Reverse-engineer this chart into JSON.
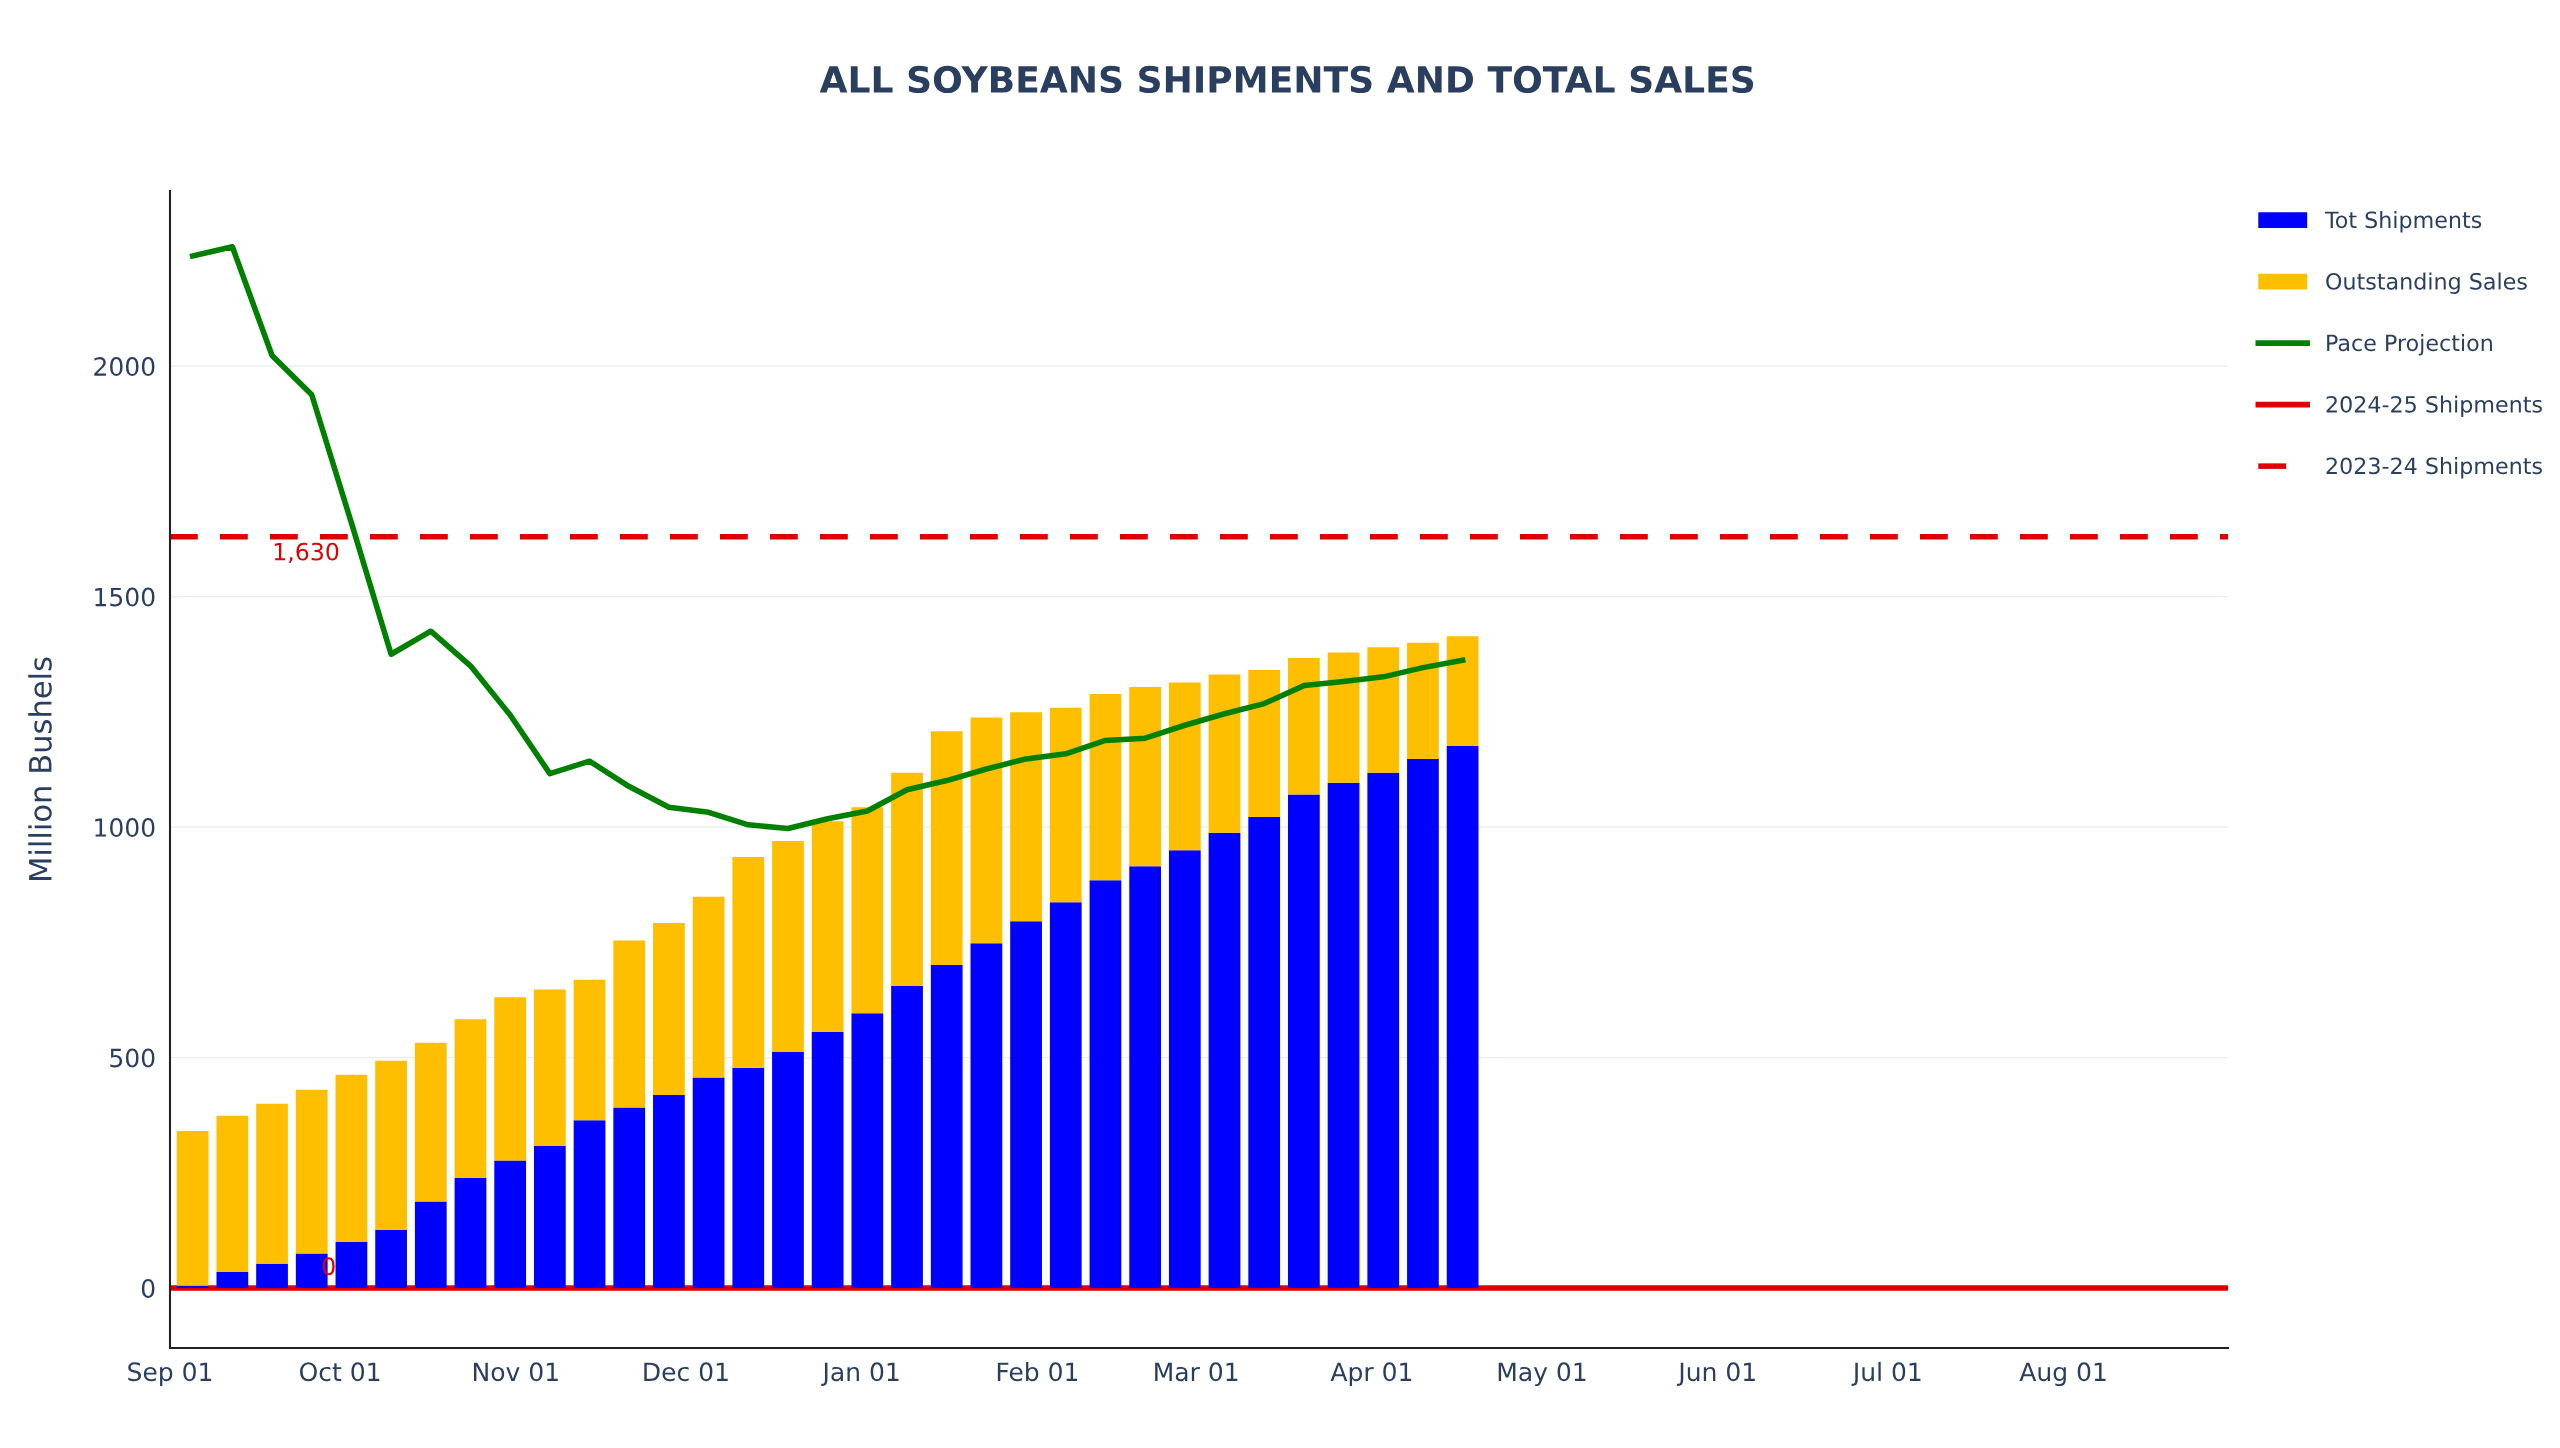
{
  "chart_data": {
    "type": "bar",
    "title": "ALL SOYBEANS SHIPMENTS AND TOTAL SALES",
    "ylabel": "Million Bushels",
    "stacked": true,
    "x": [
      "2024-09-05",
      "2024-09-12",
      "2024-09-19",
      "2024-09-26",
      "2024-10-03",
      "2024-10-10",
      "2024-10-17",
      "2024-10-24",
      "2024-10-31",
      "2024-11-07",
      "2024-11-14",
      "2024-11-21",
      "2024-11-28",
      "2024-12-05",
      "2024-12-12",
      "2024-12-19",
      "2024-12-26",
      "2025-01-02",
      "2025-01-09",
      "2025-01-16",
      "2025-01-23",
      "2025-01-30",
      "2025-02-06",
      "2025-02-13",
      "2025-02-20",
      "2025-02-27",
      "2025-03-06",
      "2025-03-13",
      "2025-03-20",
      "2025-03-27",
      "2025-04-03",
      "2025-04-10",
      "2025-04-17"
    ],
    "series": [
      {
        "name": "Tot Shipments",
        "color": "#0000ff",
        "values": [
          5,
          35,
          53,
          75,
          100,
          126,
          188,
          239,
          277,
          309,
          364,
          392,
          419,
          457,
          478,
          512,
          556,
          596,
          656,
          701,
          748,
          796,
          837,
          885,
          915,
          950,
          988,
          1022,
          1071,
          1096,
          1118,
          1148,
          1176
        ]
      },
      {
        "name": "Outstanding Sales",
        "color": "#fdbf00",
        "values": [
          336,
          339,
          347,
          355,
          363,
          367,
          344,
          344,
          354,
          339,
          305,
          362,
          373,
          392,
          457,
          458,
          457,
          447,
          462,
          507,
          490,
          453,
          422,
          404,
          389,
          364,
          343,
          319,
          296,
          283,
          272,
          252,
          238
        ]
      },
      {
        "name": "Pace Projection",
        "type": "line",
        "color": "#008000",
        "line_style": "solid",
        "values": [
          2239,
          2259,
          2023,
          1938,
          1660,
          1375,
          1425,
          1350,
          1243,
          1116,
          1143,
          1088,
          1043,
          1032,
          1005,
          997,
          1018,
          1035,
          1081,
          1101,
          1126,
          1148,
          1159,
          1188,
          1193,
          1221,
          1246,
          1268,
          1307,
          1316,
          1326,
          1346,
          1362
        ]
      },
      {
        "name": "2024-25 Shipments",
        "type": "line",
        "color": "#e00000",
        "line_style": "solid",
        "x": [
          "2024-09-01",
          "2025-08-30"
        ],
        "values": [
          0,
          0
        ]
      },
      {
        "name": "2023-24 Shipments",
        "type": "line",
        "color": "#e00000",
        "line_style": "dashed",
        "x": [
          "2024-09-01",
          "2025-08-30"
        ],
        "values": [
          1630,
          1630
        ]
      }
    ],
    "annotations": [
      {
        "text": "1,630",
        "x": "2024-09-25",
        "y": 1630
      },
      {
        "text": "0",
        "x": "2024-09-29",
        "y": 0
      }
    ],
    "xlim": [
      "2024-09-01",
      "2025-08-30"
    ],
    "xticks": [
      {
        "value": "2024-09-01",
        "label": "Sep 01"
      },
      {
        "value": "2024-10-01",
        "label": "Oct 01"
      },
      {
        "value": "2024-11-01",
        "label": "Nov 01"
      },
      {
        "value": "2024-12-01",
        "label": "Dec 01"
      },
      {
        "value": "2025-01-01",
        "label": "Jan 01"
      },
      {
        "value": "2025-02-01",
        "label": "Feb 01"
      },
      {
        "value": "2025-03-01",
        "label": "Mar 01"
      },
      {
        "value": "2025-04-01",
        "label": "Apr 01"
      },
      {
        "value": "2025-05-01",
        "label": "May 01"
      },
      {
        "value": "2025-06-01",
        "label": "Jun 01"
      },
      {
        "value": "2025-07-01",
        "label": "Jul 01"
      },
      {
        "value": "2025-08-01",
        "label": "Aug 01"
      }
    ],
    "ylim": [
      -130,
      2380
    ],
    "yticks": [
      0,
      500,
      1000,
      1500,
      2000
    ],
    "grid": "y",
    "legend": "top right"
  }
}
